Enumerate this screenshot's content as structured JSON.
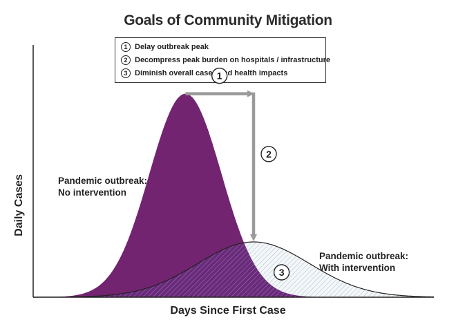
{
  "chart_data": {
    "type": "area",
    "title": "Goals of Community Mitigation",
    "xlabel": "Days Since First Case",
    "ylabel": "Daily Cases",
    "legend": [
      {
        "marker": "1",
        "text": "Delay outbreak peak"
      },
      {
        "marker": "2",
        "text": "Decompress peak burden on hospitals / infrastructure"
      },
      {
        "marker": "3",
        "text": "Diminish overall cases and health impacts"
      }
    ],
    "xlim": [
      0,
      100
    ],
    "ylim": [
      0,
      100
    ],
    "grid": false,
    "series": [
      {
        "name": "Pandemic outbreak: No intervention",
        "peak_x": 38,
        "peak_y": 92,
        "spread": 9,
        "color": "#722470"
      },
      {
        "name": "Pandemic outbreak: With intervention",
        "peak_x": 55,
        "peak_y": 25,
        "spread": 14,
        "color": "#b9c8d6"
      }
    ],
    "annotations": [
      {
        "marker": "1",
        "meaning": "shift of peak from x=38 to x=55"
      },
      {
        "marker": "2",
        "meaning": "drop of peak from y=92 to y=25"
      },
      {
        "marker": "3",
        "meaning": "area under intervention curve"
      }
    ]
  }
}
